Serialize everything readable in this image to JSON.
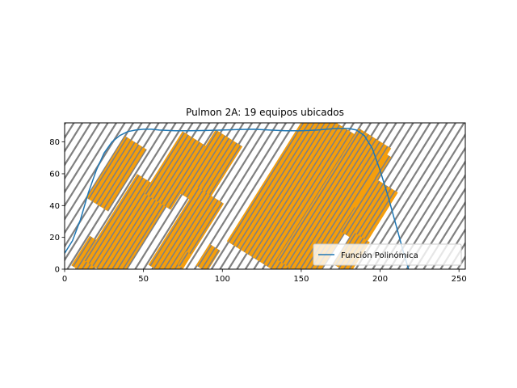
{
  "chart_data": {
    "type": "line",
    "title": "Pulmon 2A: 19 equipos ubicados",
    "xlabel": "",
    "ylabel": "",
    "xlim": [
      0,
      254
    ],
    "ylim": [
      0,
      92
    ],
    "xticks": [
      0,
      50,
      100,
      150,
      200,
      250
    ],
    "yticks": [
      0,
      20,
      40,
      60,
      80
    ],
    "grid": false,
    "legend_position": "lower-right",
    "background_pattern": "diagonal hatch lines",
    "hatch_color": "#808080",
    "panel_color": "#f59e0b",
    "panel_stripe_color": "#808080",
    "series": [
      {
        "name": "Función Polinómica",
        "color": "#1f77b4",
        "x": [
          0,
          5,
          10,
          15,
          20,
          25,
          30,
          35,
          40,
          45,
          50,
          55,
          60,
          70,
          80,
          90,
          100,
          110,
          120,
          130,
          140,
          150,
          160,
          170,
          175,
          180,
          185,
          190,
          195,
          200,
          205,
          210,
          215,
          218
        ],
        "y": [
          10,
          18,
          31,
          48,
          62,
          73,
          80,
          84,
          86.5,
          87.5,
          88,
          88,
          87.5,
          87,
          87,
          87.2,
          87.5,
          87.8,
          88,
          87.5,
          87,
          87,
          87.5,
          88.3,
          88.5,
          88.5,
          87.5,
          84,
          76,
          62,
          46,
          28,
          10,
          0
        ]
      }
    ],
    "panels": [
      {
        "cx": 33,
        "cy": 60,
        "angle": 58,
        "length": 46,
        "width": 16
      },
      {
        "cx": 16,
        "cy": 8,
        "angle": 58,
        "length": 22,
        "width": 14
      },
      {
        "cx": 28,
        "cy": 3,
        "angle": 58,
        "length": 8,
        "width": 6
      },
      {
        "cx": 40,
        "cy": 26,
        "angle": 58,
        "length": 64,
        "width": 26
      },
      {
        "cx": 71,
        "cy": 62,
        "angle": 58,
        "length": 46,
        "width": 20
      },
      {
        "cx": 92,
        "cy": 63,
        "angle": 58,
        "length": 46,
        "width": 20
      },
      {
        "cx": 77,
        "cy": 22,
        "angle": 58,
        "length": 58,
        "width": 20
      },
      {
        "cx": 76,
        "cy": 6,
        "angle": 58,
        "length": 10,
        "width": 4
      },
      {
        "cx": 91,
        "cy": 7,
        "angle": 58,
        "length": 16,
        "width": 8
      },
      {
        "cx": 155,
        "cy": 44,
        "angle": 58,
        "length": 100,
        "width": 60
      },
      {
        "cx": 160,
        "cy": 22,
        "angle": 58,
        "length": 54,
        "width": 26
      },
      {
        "cx": 184,
        "cy": 62,
        "angle": 58,
        "length": 48,
        "width": 24
      },
      {
        "cx": 193,
        "cy": 36,
        "angle": 58,
        "length": 40,
        "width": 18
      },
      {
        "cx": 182,
        "cy": 10,
        "angle": 58,
        "length": 24,
        "width": 12
      }
    ]
  }
}
